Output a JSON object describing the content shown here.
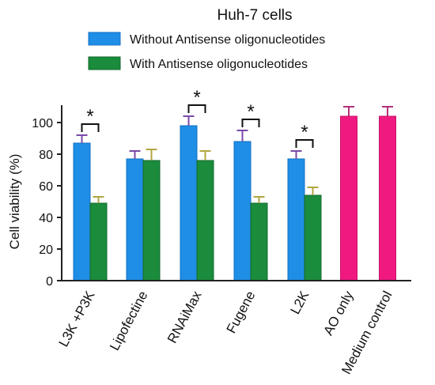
{
  "chart_data": {
    "type": "bar",
    "title": "Huh-7 cells",
    "ylabel": "Cell viability (%)",
    "xlabel": "",
    "ylim": [
      0,
      100
    ],
    "yticks": [
      0,
      20,
      40,
      60,
      80,
      100
    ],
    "categories": [
      "L3K +P3K",
      "Lipofectine",
      "RNAiMax",
      "Fugene",
      "L2K",
      "AO only",
      "Medium control"
    ],
    "series": [
      {
        "name": "Without Antisense oligonucleotides",
        "color": "#1e8ee6",
        "values": [
          87,
          77,
          98,
          88,
          77,
          null,
          null
        ],
        "errors": [
          5,
          5,
          6,
          7,
          5,
          null,
          null
        ]
      },
      {
        "name": "With Antisense oligonucleotides",
        "color": "#1a8c3c",
        "values": [
          49,
          76,
          76,
          49,
          54,
          null,
          null
        ],
        "errors": [
          4,
          7,
          6,
          4,
          5,
          null,
          null
        ]
      },
      {
        "name": "",
        "color": "#f0197f",
        "values": [
          null,
          null,
          null,
          null,
          null,
          104,
          104
        ],
        "errors": [
          null,
          null,
          null,
          null,
          null,
          6,
          6
        ]
      }
    ],
    "significance": [
      {
        "category": "L3K +P3K",
        "label": "*"
      },
      {
        "category": "RNAiMax",
        "label": "*"
      },
      {
        "category": "Fugene",
        "label": "*"
      },
      {
        "category": "L2K",
        "label": "*"
      }
    ],
    "legend_position": "top"
  },
  "colors": {
    "without": "#1e8ee6",
    "without_dark": "#1670c4",
    "with": "#1a8c3c",
    "with_dark": "#11692b",
    "control": "#f0197f",
    "error_blue": "#7a4aa8",
    "error_green": "#b0a640",
    "error_pink": "#b3307a",
    "axis": "#222222"
  }
}
